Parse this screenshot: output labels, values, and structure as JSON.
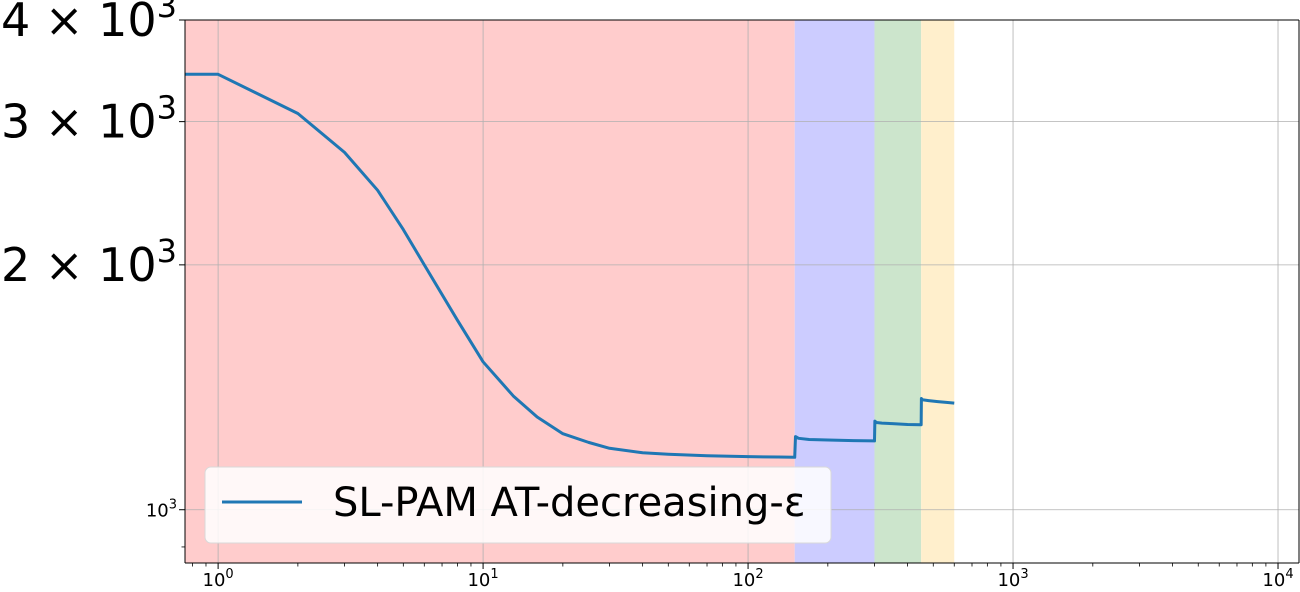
{
  "chart_data": {
    "type": "line",
    "title": "",
    "xlabel": "",
    "ylabel": "",
    "xscale": "log",
    "yscale": "log",
    "xlim": [
      0.75,
      12000
    ],
    "ylim": [
      860,
      4000
    ],
    "grid": true,
    "legend_placement": "lower-left",
    "x_ticks": [
      {
        "value": 1,
        "base": "10",
        "exp": "0"
      },
      {
        "value": 10,
        "base": "10",
        "exp": "1"
      },
      {
        "value": 100,
        "base": "10",
        "exp": "2"
      },
      {
        "value": 1000,
        "base": "10",
        "exp": "3"
      },
      {
        "value": 10000,
        "base": "10",
        "exp": "4"
      }
    ],
    "y_ticks": [
      {
        "value": 1000,
        "mantissa": "",
        "base": "10",
        "exp": "3",
        "size": "small"
      },
      {
        "value": 2000,
        "mantissa": "2 × ",
        "base": "10",
        "exp": "3",
        "size": "large"
      },
      {
        "value": 3000,
        "mantissa": "3 × ",
        "base": "10",
        "exp": "3",
        "size": "large"
      },
      {
        "value": 4000,
        "mantissa": "4 × ",
        "base": "10",
        "exp": "3",
        "size": "large"
      }
    ],
    "shaded_regions": [
      {
        "x0": 0.75,
        "x1": 150,
        "color": "#ffcccc"
      },
      {
        "x0": 150,
        "x1": 300,
        "color": "#ccccff"
      },
      {
        "x0": 300,
        "x1": 450,
        "color": "#cce5cc"
      },
      {
        "x0": 450,
        "x1": 600,
        "color": "#ffefcc"
      }
    ],
    "series": [
      {
        "name": "SL-PAM AT-decreasing-ε",
        "color": "#1f77b4",
        "x": [
          0.75,
          1,
          2,
          3,
          4,
          5,
          6,
          8,
          10,
          13,
          16,
          20,
          25,
          30,
          40,
          50,
          70,
          100,
          130,
          150,
          151,
          155,
          170,
          200,
          250,
          300,
          301,
          305,
          320,
          350,
          400,
          450,
          451,
          455,
          480,
          520,
          560,
          600
        ],
        "y": [
          3430,
          3430,
          3070,
          2750,
          2470,
          2210,
          2000,
          1710,
          1520,
          1380,
          1300,
          1240,
          1210,
          1190,
          1175,
          1170,
          1165,
          1162,
          1161,
          1160,
          1230,
          1224,
          1220,
          1218,
          1216,
          1215,
          1285,
          1280,
          1278,
          1276,
          1273,
          1272,
          1370,
          1365,
          1362,
          1358,
          1355,
          1352
        ]
      }
    ]
  }
}
